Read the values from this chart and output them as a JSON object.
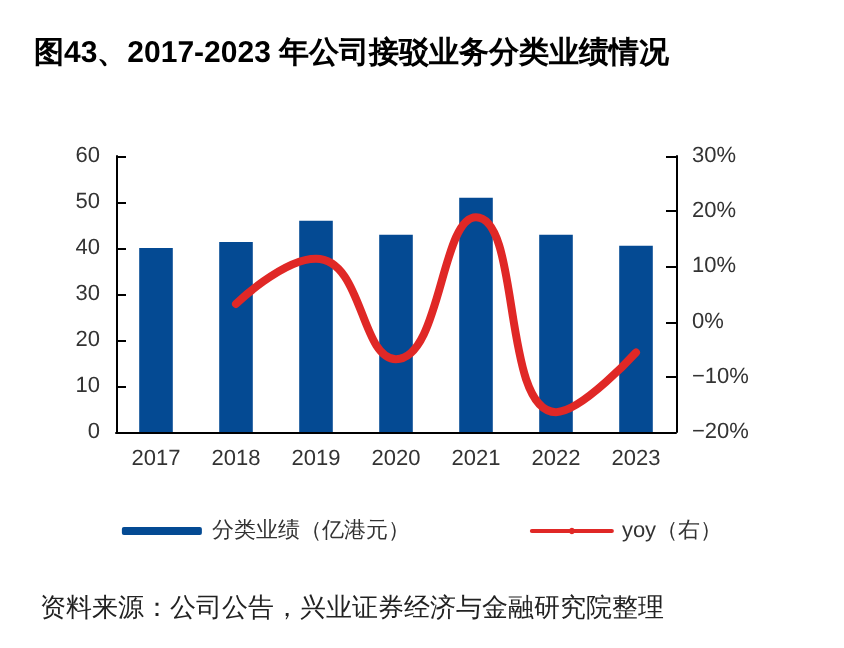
{
  "chart_data": {
    "type": "bar",
    "title": "图43、2017-2023 年公司接驳业务分类业绩情况",
    "categories": [
      "2017",
      "2018",
      "2019",
      "2020",
      "2021",
      "2022",
      "2023"
    ],
    "series": [
      {
        "name": "分类业绩（亿港元）",
        "color": "#044a93",
        "values": [
          40.0,
          41.3,
          45.9,
          42.9,
          50.9,
          42.9,
          40.5
        ]
      },
      {
        "name": "yoy（右）",
        "type": "line",
        "axis": "y2",
        "color": "#e02826",
        "values": [
          null,
          3.2,
          11.4,
          -6.8,
          18.9,
          -16.4,
          -5.6
        ]
      }
    ],
    "ylim": [
      0,
      60
    ],
    "yticks": [
      0,
      10,
      20,
      30,
      40,
      50,
      60
    ],
    "y2lim": [
      -20,
      30
    ],
    "y2ticks": [
      {
        "value": -20,
        "label": "−20%"
      },
      {
        "value": -10,
        "label": "−10%"
      },
      {
        "value": 0,
        "label": "0%"
      },
      {
        "value": 10,
        "label": "10%"
      },
      {
        "value": 20,
        "label": "20%"
      },
      {
        "value": 30,
        "label": "30%"
      }
    ],
    "grid": false,
    "legend": "bottom",
    "marker": "none",
    "line_style": "solid",
    "annotations": [
      "资料来源：公司公告，兴业证券经济与金融研究院整理"
    ]
  }
}
